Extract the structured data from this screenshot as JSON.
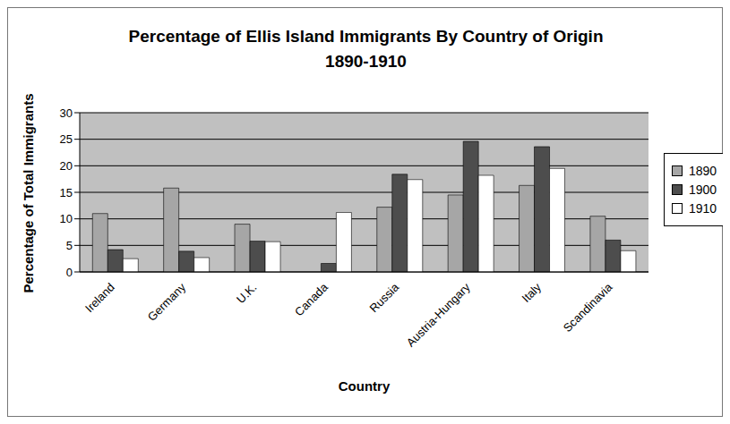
{
  "chart_data": {
    "type": "bar",
    "title": "Percentage of Ellis Island Immigrants By Country of Origin\n1890-1910",
    "x_label": "Country",
    "y_label": "Percentage of Total Immigrants",
    "categories": [
      "Ireland",
      "Germany",
      "U.K.",
      "Canada",
      "Russia",
      "Austria-Hungary",
      "Italy",
      "Scandinavia"
    ],
    "series": [
      {
        "name": "1890",
        "color": "#a6a6a6",
        "values": [
          11,
          15.8,
          9,
          0,
          12.2,
          14.5,
          16.3,
          10.5
        ]
      },
      {
        "name": "1900",
        "color": "#4d4d4d",
        "values": [
          4.2,
          3.9,
          5.8,
          1.6,
          18.4,
          24.6,
          23.6,
          6
        ]
      },
      {
        "name": "1910",
        "color": "#ffffff",
        "values": [
          2.5,
          2.7,
          5.7,
          11.2,
          17.4,
          18.2,
          19.5,
          4
        ]
      }
    ],
    "ylim": [
      0,
      30
    ],
    "yticks": [
      0,
      5,
      10,
      15,
      20,
      25,
      30
    ],
    "grid": true,
    "legend": "right"
  }
}
